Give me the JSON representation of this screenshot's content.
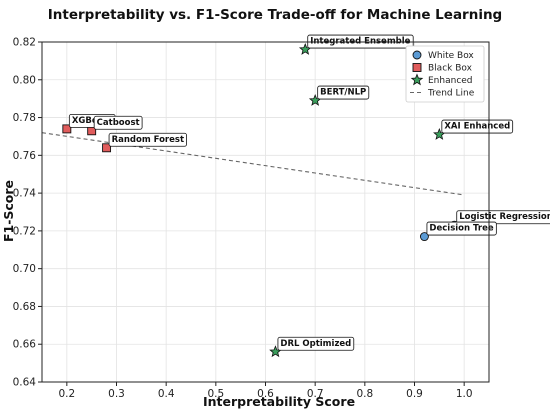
{
  "chart_data": {
    "type": "scatter",
    "title": "Interpretability vs. F1-Score Trade-off for Machine Learning",
    "xlabel": "Interpretability Score",
    "ylabel": "F1-Score",
    "xlim": [
      0.15,
      1.05
    ],
    "ylim": [
      0.64,
      0.82
    ],
    "xticks": [
      "0.2",
      "0.3",
      "0.4",
      "0.5",
      "0.6",
      "0.7",
      "0.8",
      "0.9",
      "1.0"
    ],
    "yticks": [
      "0.64",
      "0.66",
      "0.68",
      "0.70",
      "0.72",
      "0.74",
      "0.76",
      "0.78",
      "0.80",
      "0.82"
    ],
    "grid": true,
    "legend_position": "top-right",
    "series": [
      {
        "name": "White Box",
        "marker": "circle",
        "color": "#5b9bd5",
        "points": [
          {
            "label": "Logistic Regression",
            "x": 0.98,
            "y": 0.723
          },
          {
            "label": "Decision Tree",
            "x": 0.92,
            "y": 0.717
          }
        ]
      },
      {
        "name": "Black Box",
        "marker": "square",
        "color": "#e05c5c",
        "points": [
          {
            "label": "XGBoost",
            "x": 0.2,
            "y": 0.774
          },
          {
            "label": "Catboost",
            "x": 0.25,
            "y": 0.773
          },
          {
            "label": "Random Forest",
            "x": 0.28,
            "y": 0.764
          }
        ]
      },
      {
        "name": "Enhanced",
        "marker": "star",
        "color": "#3a9e5c",
        "points": [
          {
            "label": "Integrated Ensemble",
            "x": 0.68,
            "y": 0.816
          },
          {
            "label": "BERT/NLP",
            "x": 0.7,
            "y": 0.789
          },
          {
            "label": "XAI Enhanced",
            "x": 0.95,
            "y": 0.771
          },
          {
            "label": "DRL Optimized",
            "x": 0.62,
            "y": 0.656
          }
        ]
      }
    ],
    "trend_line": {
      "name": "Trend Line",
      "color": "#666666",
      "x": [
        0.15,
        1.0
      ],
      "y": [
        0.772,
        0.739
      ]
    }
  }
}
